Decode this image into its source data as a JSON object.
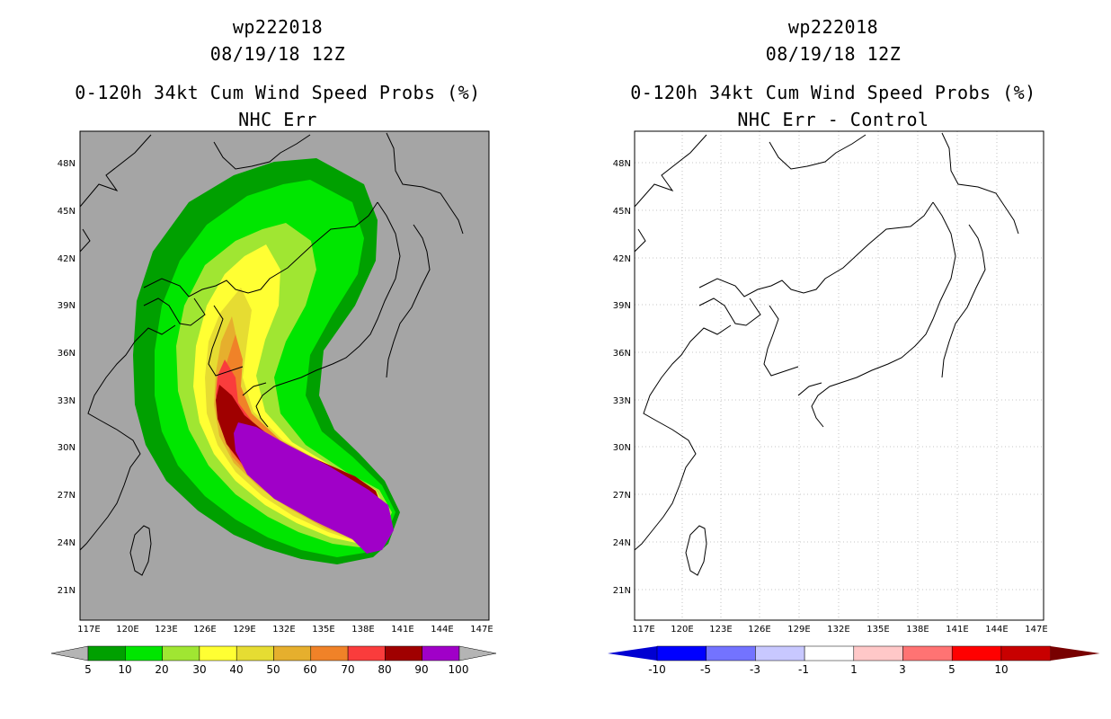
{
  "left_panel": {
    "title_line1": "wp222018",
    "title_line2": "08/19/18 12Z",
    "title_line3": "0-120h 34kt Cum Wind Speed Probs (%)",
    "title_line4": "NHC Err",
    "background_color": "#a5a5a5",
    "colorbar": {
      "labels": [
        "5",
        "10",
        "20",
        "30",
        "40",
        "50",
        "60",
        "70",
        "80",
        "90",
        "100"
      ],
      "colors": [
        "#00a000",
        "#00e600",
        "#a0e632",
        "#ffff33",
        "#e6dc32",
        "#e6af2d",
        "#f08228",
        "#fa3c3c",
        "#a00000",
        "#a000c8"
      ],
      "end_color": "#b4b4b4"
    }
  },
  "right_panel": {
    "title_line1": "wp222018",
    "title_line2": "08/19/18 12Z",
    "title_line3": "0-120h 34kt Cum Wind Speed Probs (%)",
    "title_line4": "NHC Err - Control",
    "background_color": "#ffffff",
    "colorbar": {
      "labels": [
        "-10",
        "-5",
        "-3",
        "-1",
        "1",
        "3",
        "5",
        "10"
      ],
      "colors": [
        "#0000d2",
        "#0000ff",
        "#7373ff",
        "#c8c8ff",
        "#ffffff",
        "#ffc8c8",
        "#ff7373",
        "#ff0000",
        "#c80000",
        "#780000"
      ]
    }
  },
  "axes": {
    "lon_labels": [
      "117E",
      "120E",
      "123E",
      "126E",
      "129E",
      "132E",
      "135E",
      "138E",
      "141E",
      "144E",
      "147E"
    ],
    "lat_labels": [
      "48N",
      "45N",
      "42N",
      "39N",
      "36N",
      "33N",
      "30N",
      "27N",
      "24N",
      "21N"
    ]
  }
}
